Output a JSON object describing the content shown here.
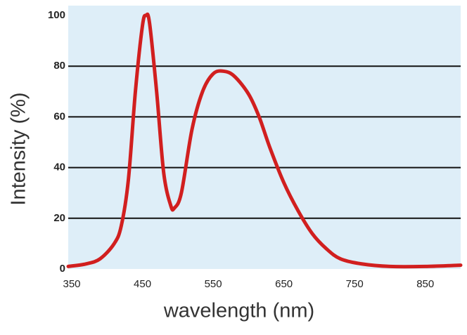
{
  "chart_data": {
    "type": "line",
    "x_label": "wavelength (nm)",
    "y_label": "Intensity (%)",
    "x": [
      345,
      370,
      390,
      410,
      420,
      430,
      440,
      450,
      455,
      460,
      470,
      480,
      490,
      495,
      505,
      520,
      535,
      550,
      565,
      580,
      600,
      615,
      630,
      650,
      670,
      690,
      710,
      730,
      760,
      800,
      850,
      900
    ],
    "values": [
      1,
      2,
      4,
      10,
      17,
      35,
      70,
      96,
      100,
      97,
      70,
      38,
      25,
      24,
      30,
      55,
      70,
      77,
      78,
      76,
      69,
      60,
      48,
      34,
      23,
      14,
      8,
      4,
      2,
      1,
      1,
      1.5
    ],
    "color": "#d11f1f",
    "background": "#deeef8",
    "xlim": [
      345,
      900
    ],
    "ylim": [
      0,
      100
    ],
    "xticks": [
      350,
      450,
      550,
      650,
      750,
      850
    ],
    "yticks": [
      0,
      20,
      40,
      60,
      80,
      100
    ],
    "grid": true
  }
}
